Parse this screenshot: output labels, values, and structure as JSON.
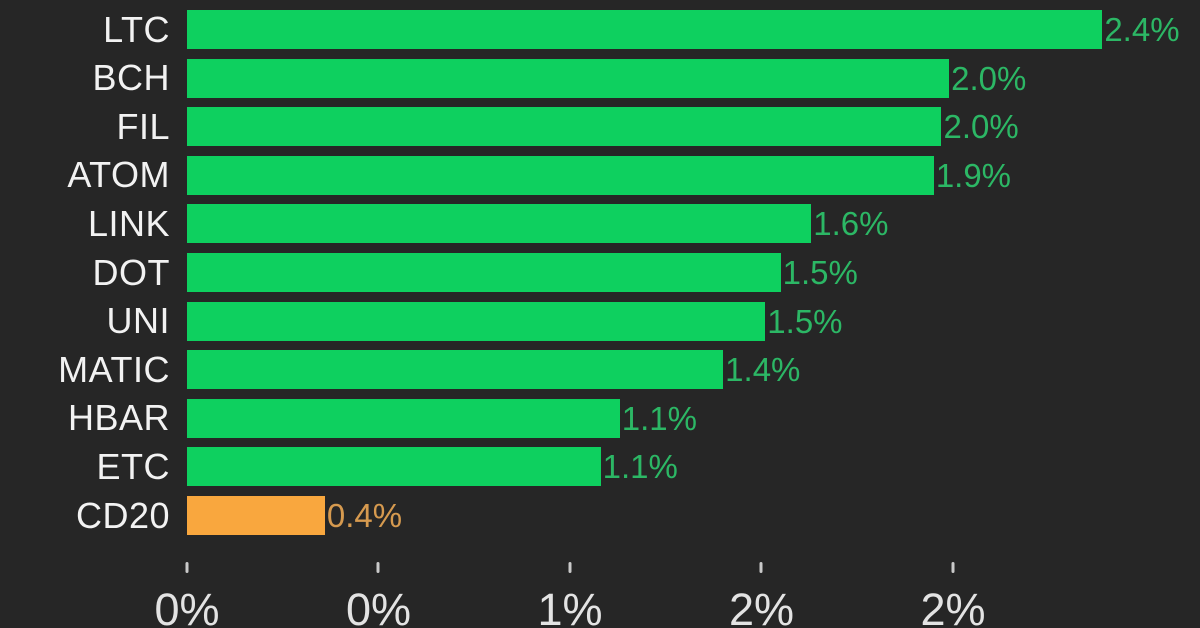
{
  "chart_data": {
    "type": "bar",
    "orientation": "horizontal",
    "title": "",
    "xlabel": "",
    "ylabel": "",
    "legend": "none",
    "grid": false,
    "background": "#262626",
    "categories": [
      "LTC",
      "BCH",
      "FIL",
      "ATOM",
      "LINK",
      "DOT",
      "UNI",
      "MATIC",
      "HBAR",
      "ETC",
      "CD20"
    ],
    "values": [
      2.39,
      1.99,
      1.97,
      1.95,
      1.63,
      1.55,
      1.51,
      1.4,
      1.13,
      1.08,
      0.36
    ],
    "bars": [
      {
        "category": "LTC",
        "value": 2.39,
        "label": "2.4%",
        "color": "green"
      },
      {
        "category": "BCH",
        "value": 1.99,
        "label": "2.0%",
        "color": "green"
      },
      {
        "category": "FIL",
        "value": 1.97,
        "label": "2.0%",
        "color": "green"
      },
      {
        "category": "ATOM",
        "value": 1.95,
        "label": "1.9%",
        "color": "green"
      },
      {
        "category": "LINK",
        "value": 1.63,
        "label": "1.6%",
        "color": "green"
      },
      {
        "category": "DOT",
        "value": 1.55,
        "label": "1.5%",
        "color": "green"
      },
      {
        "category": "UNI",
        "value": 1.51,
        "label": "1.5%",
        "color": "green"
      },
      {
        "category": "MATIC",
        "value": 1.4,
        "label": "1.4%",
        "color": "green"
      },
      {
        "category": "HBAR",
        "value": 1.13,
        "label": "1.1%",
        "color": "green"
      },
      {
        "category": "ETC",
        "value": 1.08,
        "label": "1.1%",
        "color": "green"
      },
      {
        "category": "CD20",
        "value": 0.36,
        "label": "0.4%",
        "color": "orange"
      }
    ],
    "highlight_category": "CD20",
    "x_axis": {
      "min": 0,
      "max": 2.645,
      "ticks": [
        {
          "value": 0.0,
          "label": "0%"
        },
        {
          "value": 0.5,
          "label": "0%"
        },
        {
          "value": 1.0,
          "label": "1%"
        },
        {
          "value": 1.5,
          "label": "2%"
        },
        {
          "value": 2.0,
          "label": "2%"
        }
      ]
    },
    "colors": {
      "bar_green": "#0ed05f",
      "bar_orange": "#f9a73e",
      "value_label_green": "#2cb765",
      "value_label_orange": "#d69a4f",
      "category_label": "#f2f2f2",
      "tick_mark": "#c9c9c9",
      "tick_label": "#e3e3e3",
      "background": "#262626"
    }
  }
}
